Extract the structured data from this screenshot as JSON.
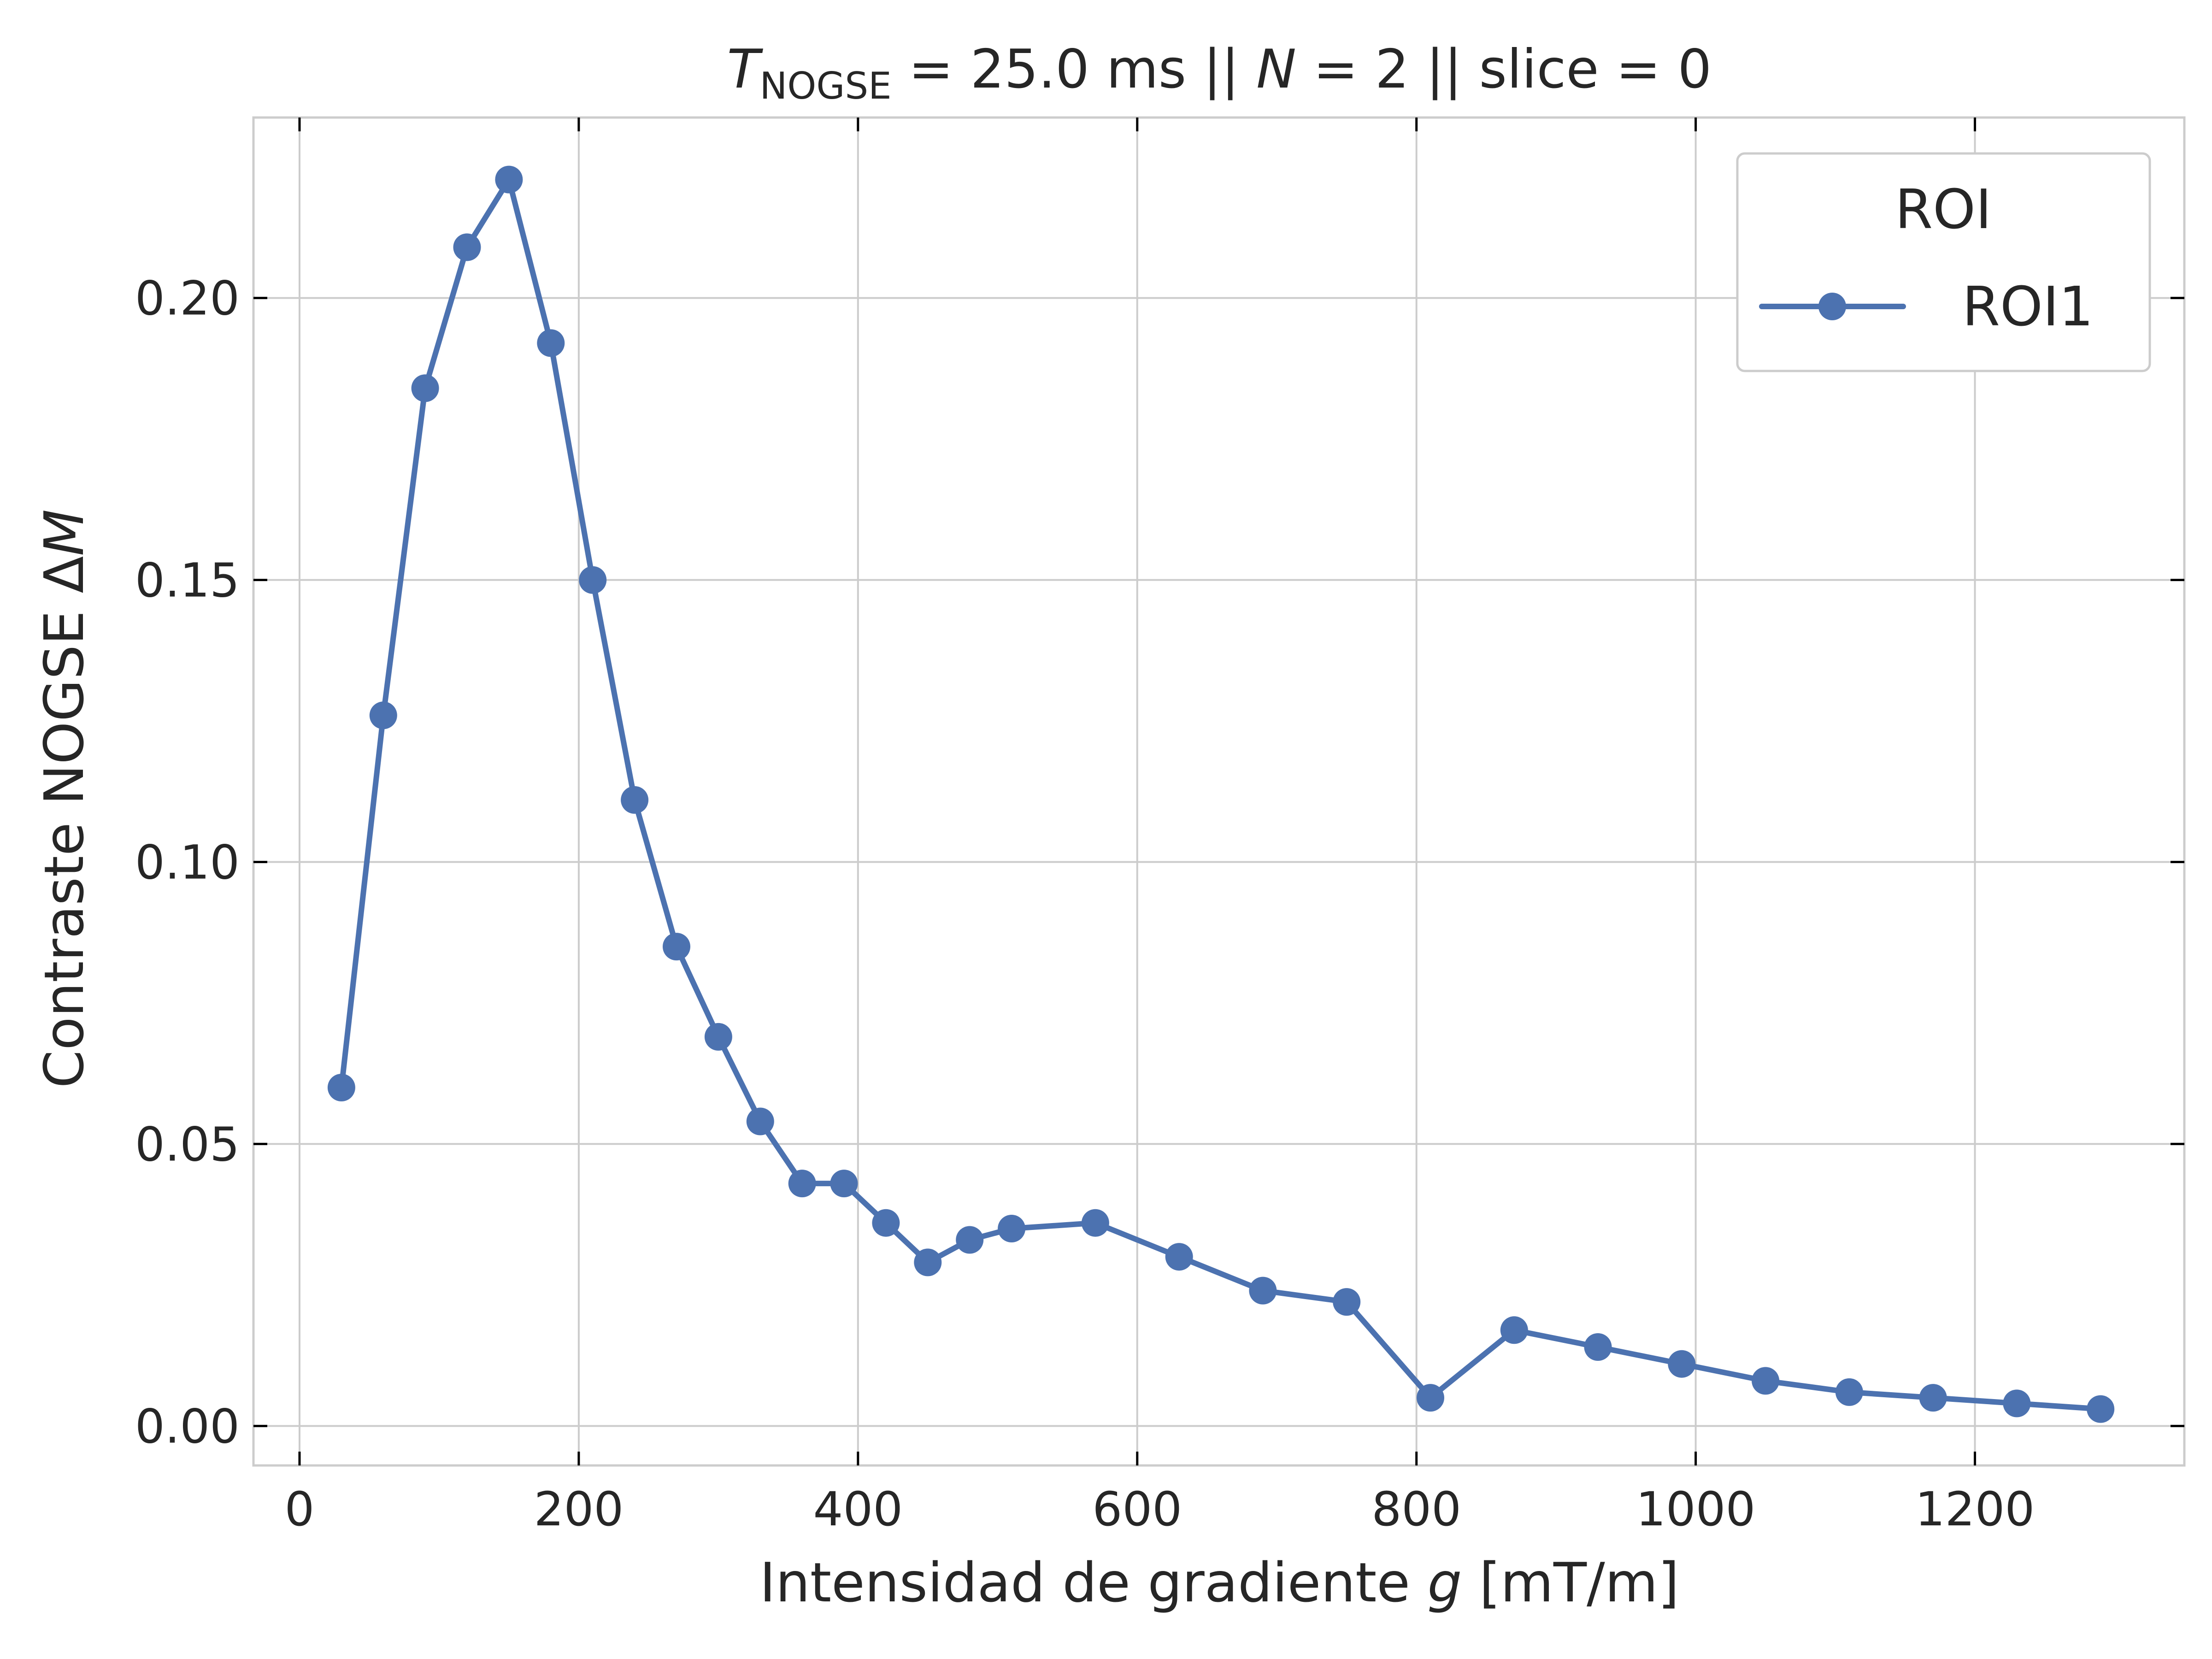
{
  "chart_data": {
    "type": "line",
    "title": {
      "t_symbol": "T",
      "t_subscript": "NOGSE",
      "t_rest": " = 25.0 ms  ||  ",
      "n_symbol": "N",
      "n_rest": " = 2 || slice = 0"
    },
    "xlabel": {
      "prefix": "Intensidad de gradiente ",
      "symbol": "g",
      "suffix": " [mT/m]"
    },
    "ylabel": {
      "prefix": "Contraste NOGSE Δ",
      "symbol": "M"
    },
    "xlim": [
      -33,
      1350
    ],
    "ylim": [
      -0.007,
      0.232
    ],
    "xticks": [
      0,
      200,
      400,
      600,
      800,
      1000,
      1200
    ],
    "yticks": [
      0.0,
      0.05,
      0.1,
      0.15,
      0.2
    ],
    "xtick_labels": [
      "0",
      "200",
      "400",
      "600",
      "800",
      "1000",
      "1200"
    ],
    "ytick_labels": [
      "0.00",
      "0.05",
      "0.10",
      "0.15",
      "0.20"
    ],
    "grid": true,
    "legend": {
      "title": "ROI",
      "placement": "top-right"
    },
    "series": [
      {
        "name": "ROI1",
        "color": "#4c72b0",
        "marker": "circle",
        "x": [
          30,
          60,
          90,
          120,
          150,
          180,
          210,
          240,
          270,
          300,
          330,
          360,
          390,
          420,
          450,
          480,
          510,
          570,
          630,
          690,
          750,
          810,
          870,
          930,
          990,
          1050,
          1110,
          1170,
          1230,
          1290
        ],
        "y": [
          0.06,
          0.126,
          0.184,
          0.209,
          0.221,
          0.192,
          0.15,
          0.111,
          0.085,
          0.069,
          0.054,
          0.043,
          0.043,
          0.036,
          0.029,
          0.033,
          0.035,
          0.036,
          0.03,
          0.024,
          0.022,
          0.005,
          0.017,
          0.014,
          0.011,
          0.008,
          0.006,
          0.005,
          0.004,
          0.003
        ]
      }
    ]
  },
  "colors": {
    "series": "#4c72b0",
    "grid": "#cccccc",
    "frame": "#cccccc",
    "text": "#262626"
  }
}
